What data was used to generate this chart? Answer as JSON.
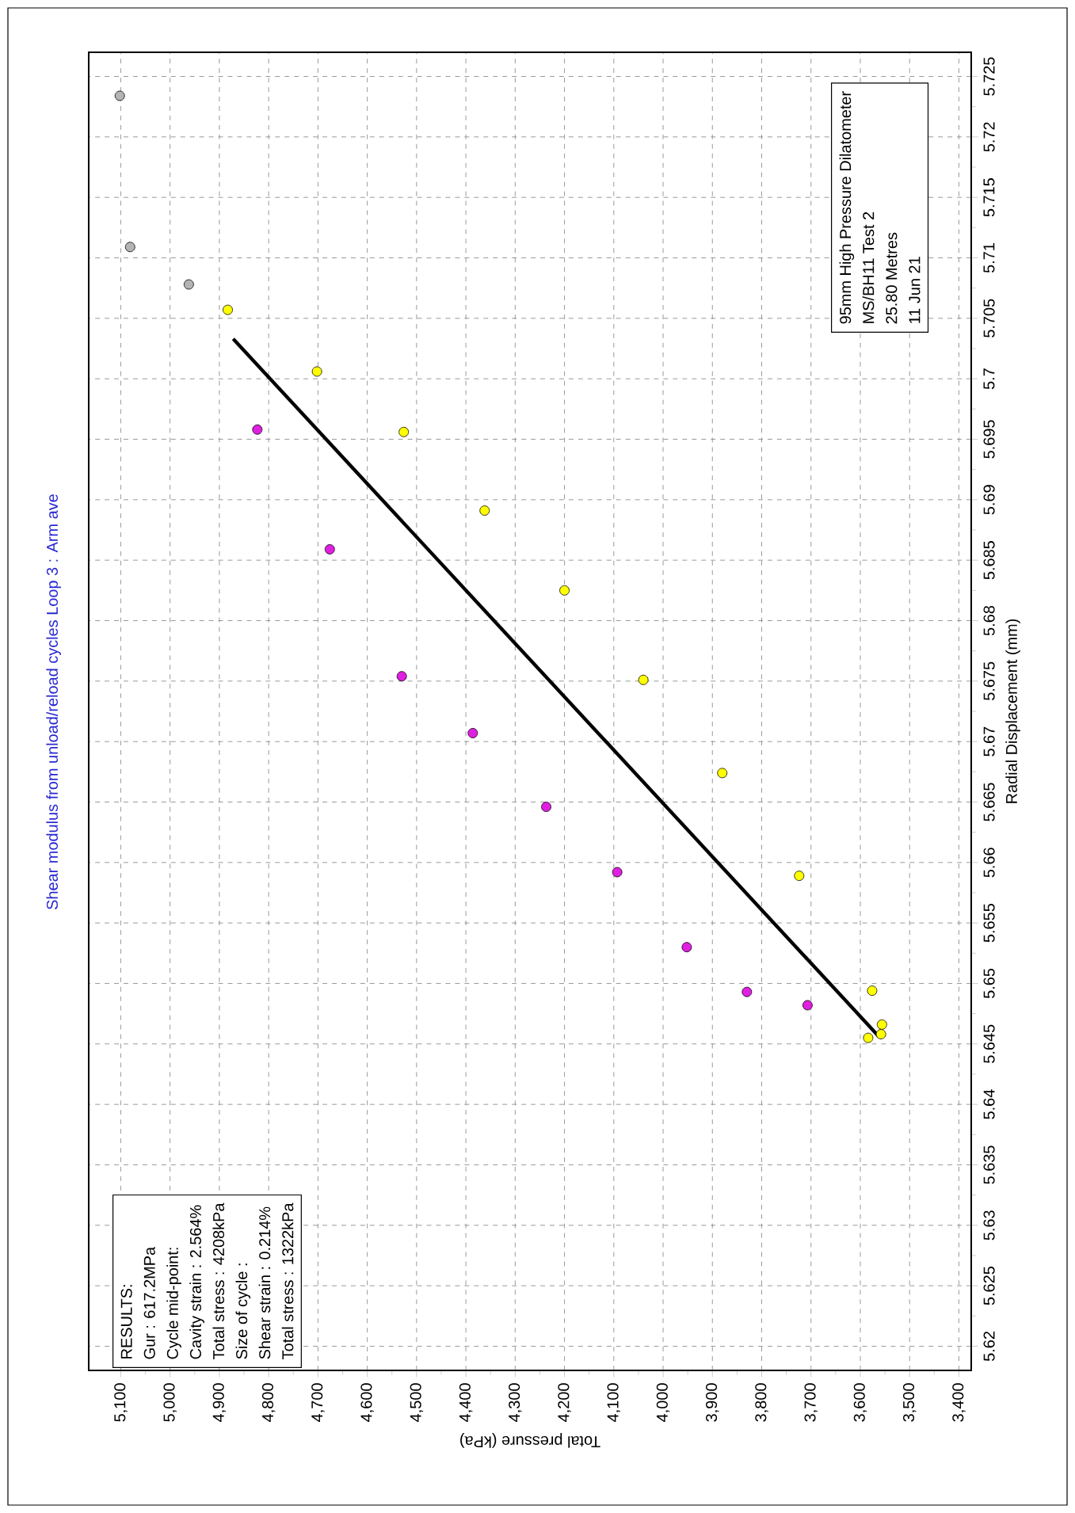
{
  "chart_data": {
    "type": "scatter",
    "title": "Shear modulus from unload/reload cycles Loop 3 : Arm ave",
    "xlabel": "Total pressure (kPa)",
    "ylabel": "Radial Displacement (mm)",
    "xlim": [
      5165,
      3375
    ],
    "ylim": [
      5.618,
      5.727
    ],
    "xticks": [
      {
        "value": 5100,
        "label": "5,100"
      },
      {
        "value": 5000,
        "label": "5,000"
      },
      {
        "value": 4900,
        "label": "4,900"
      },
      {
        "value": 4800,
        "label": "4,800"
      },
      {
        "value": 4700,
        "label": "4,700"
      },
      {
        "value": 4600,
        "label": "4,600"
      },
      {
        "value": 4500,
        "label": "4,500"
      },
      {
        "value": 4400,
        "label": "4,400"
      },
      {
        "value": 4300,
        "label": "4,300"
      },
      {
        "value": 4200,
        "label": "4,200"
      },
      {
        "value": 4100,
        "label": "4,100"
      },
      {
        "value": 4000,
        "label": "4,000"
      },
      {
        "value": 3900,
        "label": "3,900"
      },
      {
        "value": 3800,
        "label": "3,800"
      },
      {
        "value": 3700,
        "label": "3,700"
      },
      {
        "value": 3600,
        "label": "3,600"
      },
      {
        "value": 3500,
        "label": "3,500"
      },
      {
        "value": 3400,
        "label": "3,400"
      }
    ],
    "yticks": [
      5.62,
      5.625,
      5.63,
      5.635,
      5.64,
      5.645,
      5.65,
      5.655,
      5.66,
      5.665,
      5.67,
      5.675,
      5.68,
      5.685,
      5.69,
      5.695,
      5.7,
      5.705,
      5.71,
      5.715,
      5.72,
      5.725
    ],
    "grid": true,
    "series": [
      {
        "color": "#b4b4b4",
        "marker": "circle",
        "x": [
          5102,
          5081,
          4962
        ],
        "values": [
          5.7234,
          5.7109,
          5.7078
        ]
      },
      {
        "color": "#ffff00",
        "marker": "circle",
        "x": [
          4883,
          4702,
          4526,
          4362,
          4200,
          4040,
          3880,
          3724,
          3576,
          3556,
          3558,
          3584
        ],
        "values": [
          5.7057,
          5.7006,
          5.6956,
          5.6891,
          5.6825,
          5.6751,
          5.6674,
          5.6589,
          5.6494,
          5.6466,
          5.6458,
          5.6455
        ]
      },
      {
        "color": "#e020e0",
        "marker": "circle",
        "x": [
          4823,
          4676,
          4530,
          4386,
          4237,
          4093,
          3952,
          3830,
          3707
        ],
        "values": [
          5.6958,
          5.6859,
          5.6754,
          5.6707,
          5.6646,
          5.6592,
          5.653,
          5.6493,
          5.6482
        ]
      },
      {
        "type": "line",
        "marker": "none",
        "color": "#000000",
        "x": [
          3562,
          4872
        ],
        "values": [
          5.6456,
          5.7033
        ]
      }
    ],
    "annotations": [
      "RESULTS:",
      "Gur : 617.2MPa",
      "Cycle mid-point:",
      "Cavity strain  : 2.564%",
      "Total stress : 4208kPa",
      "Size of cycle :",
      "Shear strain : 0.214%",
      "Total stress : 1322kPa",
      "95mm High Pressure Dilatometer",
      "MS/BH11 Test 2",
      "25.80 Metres",
      "11 Jun 21"
    ]
  }
}
